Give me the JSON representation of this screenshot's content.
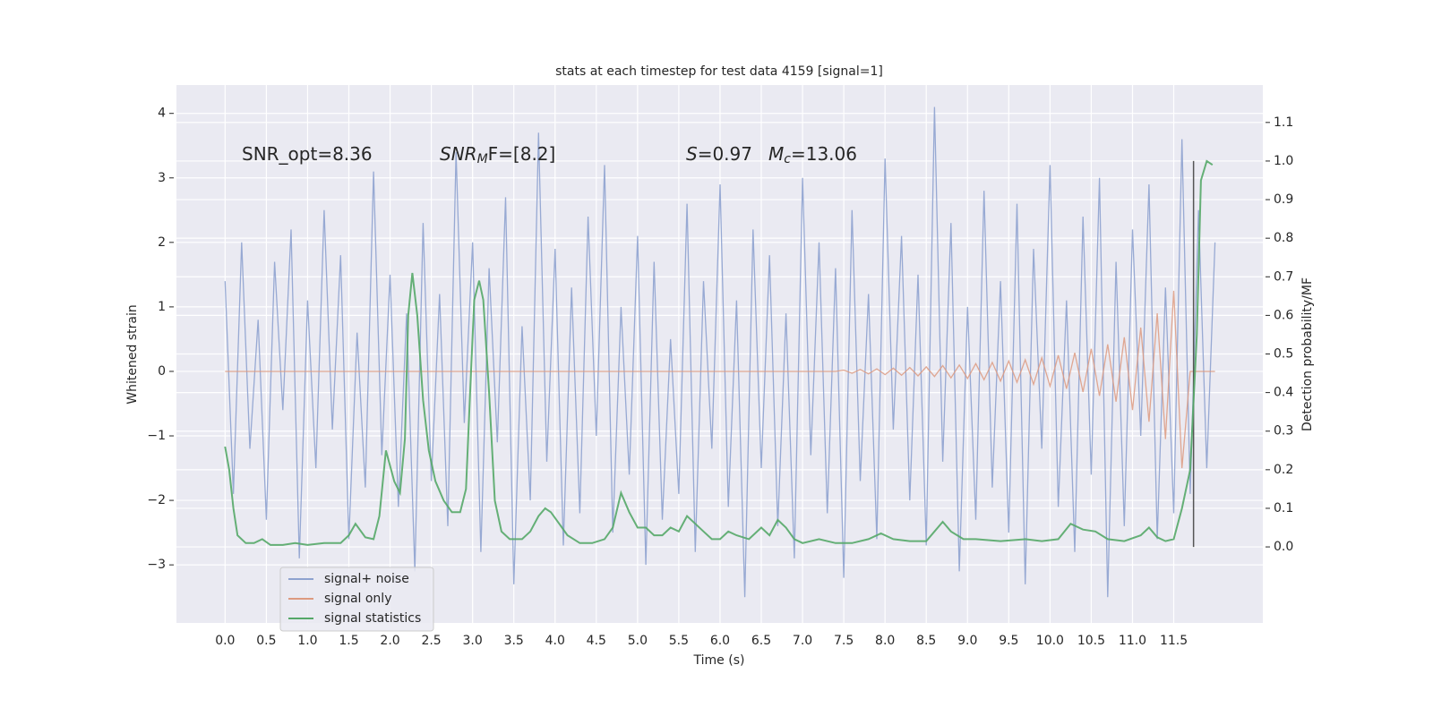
{
  "chart_data": {
    "type": "line",
    "title": "stats at each timestep for test data 4159 [signal=1]",
    "xlabel": "Time (s)",
    "ylabel": "Whitened strain",
    "y2label": "Detection probability/MF",
    "annotations": [
      [
        "SNR_opt=8.36"
      ],
      [
        "SNR",
        "M",
        "F=[8.2]"
      ],
      [
        "S",
        "=0.97"
      ],
      [
        "M",
        "c",
        "=13.06"
      ]
    ],
    "xlim": [
      -0.59,
      12.58
    ],
    "ylim": [
      -3.9,
      4.44
    ],
    "y2lim": [
      -0.197,
      1.197
    ],
    "xticks": [
      {
        "value": 0,
        "label": "0.0"
      },
      0.5,
      {
        "value": 1,
        "label": "1.0"
      },
      1.5,
      {
        "value": 2,
        "label": "2.0"
      },
      2.5,
      {
        "value": 3,
        "label": "3.0"
      },
      3.5,
      {
        "value": 4,
        "label": "4.0"
      },
      4.5,
      {
        "value": 5,
        "label": "5.0"
      },
      5.5,
      {
        "value": 6,
        "label": "6.0"
      },
      6.5,
      {
        "value": 7,
        "label": "7.0"
      },
      7.5,
      {
        "value": 8,
        "label": "8.0"
      },
      8.5,
      {
        "value": 9,
        "label": "9.0"
      },
      9.5,
      {
        "value": 10,
        "label": "10.0"
      },
      10.5,
      {
        "value": 11,
        "label": "11.0"
      },
      11.5
    ],
    "yticks": [
      {
        "value": -3,
        "label": "−3"
      },
      {
        "value": -2,
        "label": "−2"
      },
      {
        "value": -1,
        "label": "−1"
      },
      0,
      1,
      2,
      3,
      4
    ],
    "y2ticks": [
      {
        "value": 0,
        "label": "0.0"
      },
      0.1,
      0.2,
      0.3,
      0.4,
      0.5,
      0.6,
      0.7,
      0.8,
      0.9,
      {
        "value": 1,
        "label": "1.0"
      },
      1.1
    ],
    "grid": true,
    "legend": "lower left",
    "x": [
      0.0,
      0.1,
      0.2,
      0.3,
      0.4,
      0.5,
      0.6,
      0.7,
      0.8,
      0.9,
      1.0,
      1.1,
      1.2,
      1.3,
      1.4,
      1.5,
      1.6,
      1.7,
      1.8,
      1.9,
      2.0,
      2.1,
      2.2,
      2.3,
      2.4,
      2.5,
      2.6,
      2.7,
      2.8,
      2.9,
      3.0,
      3.1,
      3.2,
      3.3,
      3.4,
      3.5,
      3.6,
      3.7,
      3.8,
      3.9,
      4.0,
      4.1,
      4.2,
      4.3,
      4.4,
      4.5,
      4.6,
      4.7,
      4.8,
      4.9,
      5.0,
      5.1,
      5.2,
      5.3,
      5.4,
      5.5,
      5.6,
      5.7,
      5.8,
      5.9,
      6.0,
      6.1,
      6.2,
      6.3,
      6.4,
      6.5,
      6.6,
      6.7,
      6.8,
      6.9,
      7.0,
      7.1,
      7.2,
      7.3,
      7.4,
      7.5,
      7.6,
      7.7,
      7.8,
      7.9,
      8.0,
      8.1,
      8.2,
      8.3,
      8.4,
      8.5,
      8.6,
      8.7,
      8.8,
      8.9,
      9.0,
      9.1,
      9.2,
      9.3,
      9.4,
      9.5,
      9.6,
      9.7,
      9.8,
      9.9,
      10.0,
      10.1,
      10.2,
      10.3,
      10.4,
      10.5,
      10.6,
      10.7,
      10.8,
      10.9,
      11.0,
      11.1,
      11.2,
      11.3,
      11.4,
      11.5,
      11.6,
      11.7,
      11.8,
      11.9,
      12.0
    ],
    "series": [
      {
        "name": "signal+ noise",
        "color": "#8ea2cf",
        "values": [
          1.4,
          -1.9,
          2.0,
          -1.2,
          0.8,
          -2.3,
          1.7,
          -0.6,
          2.2,
          -2.9,
          1.1,
          -1.5,
          2.5,
          -0.9,
          1.8,
          -2.6,
          0.6,
          -1.8,
          3.1,
          -1.3,
          1.5,
          -2.1,
          0.9,
          -3.1,
          2.3,
          -1.7,
          1.2,
          -2.4,
          3.4,
          -0.8,
          2.0,
          -2.8,
          1.6,
          -1.1,
          2.7,
          -3.3,
          0.7,
          -2.0,
          3.7,
          -1.4,
          1.9,
          -2.7,
          1.3,
          -2.2,
          2.4,
          -1.0,
          3.2,
          -2.5,
          1.0,
          -1.6,
          2.1,
          -3.0,
          1.7,
          -2.3,
          0.5,
          -1.9,
          2.6,
          -2.8,
          1.4,
          -1.2,
          2.9,
          -2.1,
          1.1,
          -3.5,
          2.2,
          -1.5,
          1.8,
          -2.4,
          0.9,
          -2.9,
          3.0,
          -1.3,
          2.0,
          -2.2,
          1.6,
          -3.2,
          2.5,
          -1.7,
          1.2,
          -2.6,
          3.3,
          -0.9,
          2.1,
          -2.0,
          1.5,
          -2.7,
          4.1,
          -1.4,
          2.3,
          -3.1,
          1.0,
          -2.3,
          2.8,
          -1.8,
          1.4,
          -2.5,
          2.6,
          -3.3,
          1.9,
          -1.2,
          3.2,
          -2.1,
          1.1,
          -2.8,
          2.4,
          -1.6,
          3.0,
          -3.5,
          1.7,
          -2.4,
          2.2,
          -1.0,
          2.9,
          -2.6,
          1.3,
          -2.2,
          3.6,
          -1.9,
          2.5,
          -1.5,
          2.0
        ]
      },
      {
        "name": "signal only",
        "color": "#dd9a80",
        "values": [
          0,
          0,
          0,
          0,
          0,
          0,
          0,
          0,
          0,
          0,
          0,
          0,
          0,
          0,
          0,
          0,
          0,
          0,
          0,
          0,
          0,
          0,
          0,
          0,
          0,
          0,
          0,
          0,
          0,
          0,
          0,
          0,
          0,
          0,
          0,
          0,
          0,
          0,
          0,
          0,
          0,
          0,
          0,
          0,
          0,
          0,
          0,
          0,
          0,
          0,
          0,
          0,
          0,
          0,
          0,
          0,
          0,
          0,
          0,
          0,
          0,
          0,
          0,
          0,
          0,
          0,
          0,
          0,
          0,
          0,
          0,
          0,
          0,
          0,
          0,
          0.02,
          -0.03,
          0.03,
          -0.04,
          0.04,
          -0.05,
          0.05,
          -0.06,
          0.06,
          -0.07,
          0.07,
          -0.08,
          0.09,
          -0.1,
          0.1,
          -0.11,
          0.12,
          -0.13,
          0.14,
          -0.15,
          0.16,
          -0.17,
          0.18,
          -0.2,
          0.21,
          -0.23,
          0.25,
          -0.27,
          0.29,
          -0.32,
          0.35,
          -0.38,
          0.42,
          -0.47,
          0.53,
          -0.6,
          0.68,
          -0.78,
          0.9,
          -1.05,
          1.25,
          -1.5,
          0,
          0,
          0,
          0
        ]
      },
      {
        "name": "signal statistics",
        "color": "#55a868",
        "axis": "y2",
        "x": [
          0.0,
          0.05,
          0.1,
          0.15,
          0.25,
          0.35,
          0.45,
          0.55,
          0.7,
          0.85,
          1.0,
          1.2,
          1.4,
          1.5,
          1.58,
          1.7,
          1.8,
          1.87,
          1.95,
          2.05,
          2.12,
          2.18,
          2.22,
          2.27,
          2.33,
          2.4,
          2.47,
          2.55,
          2.65,
          2.75,
          2.85,
          2.92,
          2.97,
          3.02,
          3.08,
          3.13,
          3.2,
          3.27,
          3.35,
          3.45,
          3.6,
          3.7,
          3.8,
          3.88,
          3.95,
          4.05,
          4.15,
          4.3,
          4.45,
          4.6,
          4.7,
          4.8,
          4.9,
          5.0,
          5.1,
          5.2,
          5.3,
          5.4,
          5.5,
          5.6,
          5.7,
          5.8,
          5.9,
          6.0,
          6.1,
          6.2,
          6.35,
          6.5,
          6.6,
          6.7,
          6.8,
          6.9,
          7.0,
          7.2,
          7.4,
          7.6,
          7.8,
          7.95,
          8.1,
          8.3,
          8.5,
          8.6,
          8.7,
          8.8,
          8.95,
          9.1,
          9.4,
          9.7,
          9.9,
          10.1,
          10.25,
          10.4,
          10.55,
          10.7,
          10.9,
          11.1,
          11.2,
          11.3,
          11.4,
          11.5,
          11.6,
          11.7,
          11.78,
          11.83,
          11.9,
          11.97
        ],
        "values": [
          0.26,
          0.2,
          0.1,
          0.03,
          0.01,
          0.01,
          0.02,
          0.005,
          0.005,
          0.01,
          0.005,
          0.01,
          0.01,
          0.03,
          0.06,
          0.025,
          0.02,
          0.08,
          0.25,
          0.17,
          0.14,
          0.28,
          0.6,
          0.71,
          0.6,
          0.38,
          0.25,
          0.17,
          0.12,
          0.09,
          0.09,
          0.15,
          0.4,
          0.64,
          0.69,
          0.64,
          0.4,
          0.12,
          0.04,
          0.02,
          0.02,
          0.04,
          0.08,
          0.1,
          0.09,
          0.06,
          0.03,
          0.01,
          0.01,
          0.02,
          0.05,
          0.14,
          0.09,
          0.05,
          0.05,
          0.03,
          0.03,
          0.05,
          0.04,
          0.08,
          0.06,
          0.04,
          0.02,
          0.02,
          0.04,
          0.03,
          0.02,
          0.05,
          0.03,
          0.07,
          0.05,
          0.02,
          0.01,
          0.02,
          0.01,
          0.01,
          0.02,
          0.035,
          0.02,
          0.015,
          0.015,
          0.04,
          0.065,
          0.04,
          0.02,
          0.02,
          0.015,
          0.02,
          0.015,
          0.02,
          0.06,
          0.045,
          0.04,
          0.02,
          0.015,
          0.03,
          0.05,
          0.025,
          0.015,
          0.02,
          0.1,
          0.2,
          0.55,
          0.95,
          1.0,
          0.99
        ]
      }
    ],
    "vline": {
      "x": 11.74,
      "y2range": [
        0,
        1
      ],
      "color": "#555555"
    }
  }
}
